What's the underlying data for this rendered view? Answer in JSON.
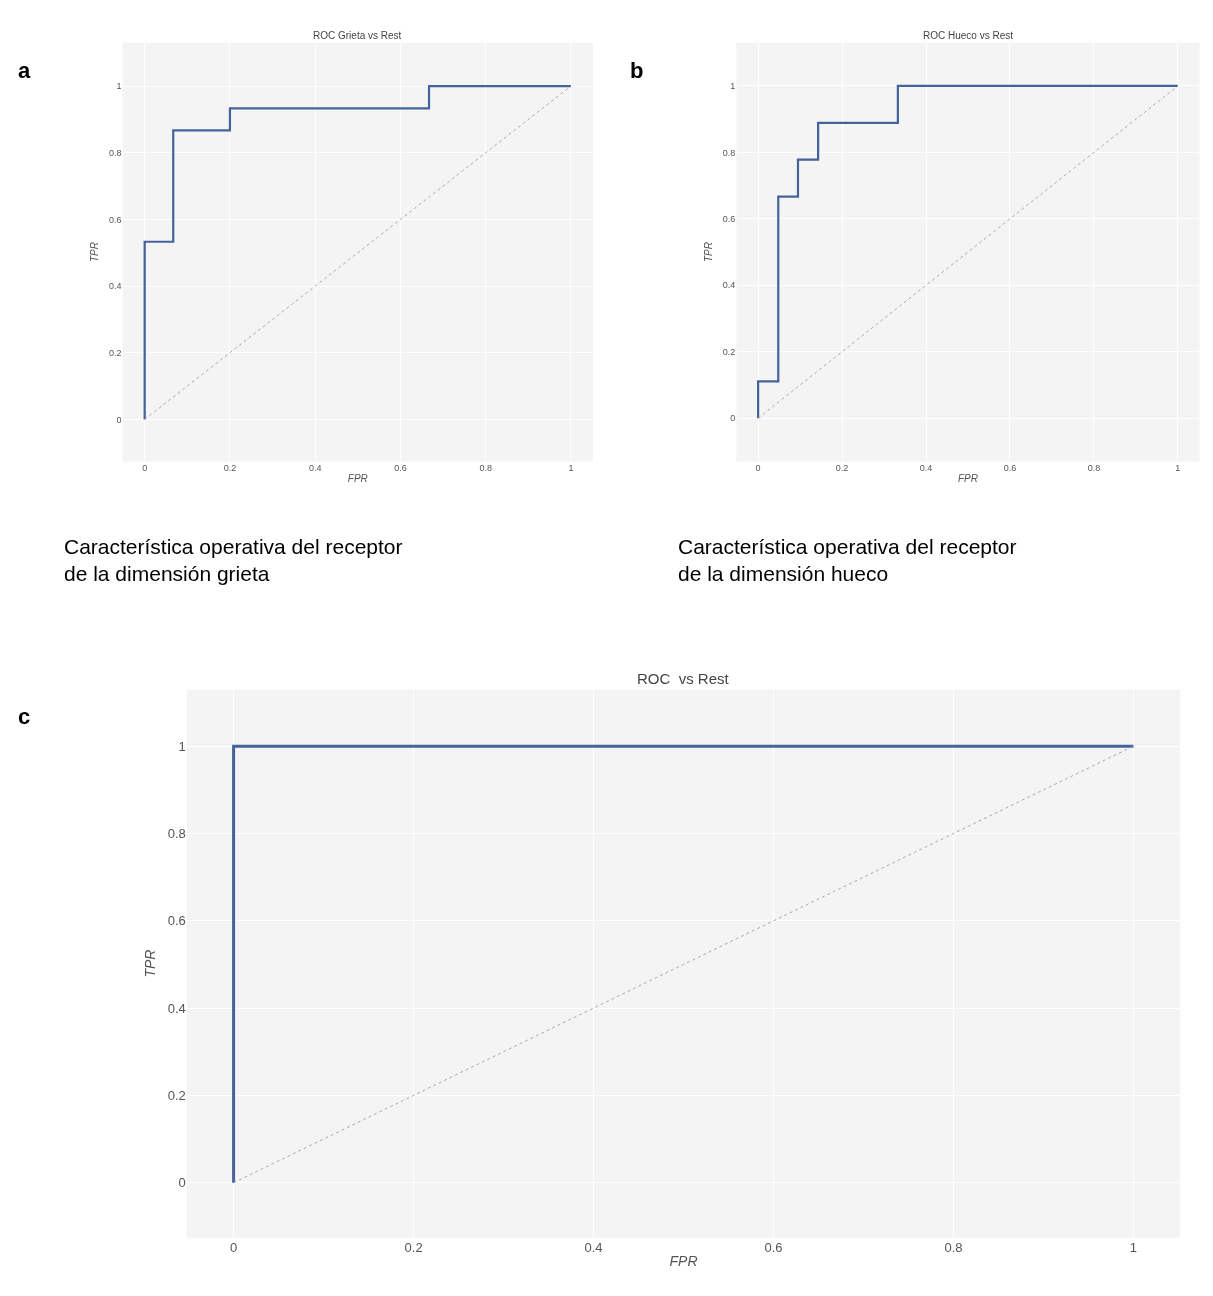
{
  "chart_data": [
    {
      "type": "step",
      "title": "ROC Grieta vs Rest",
      "xlabel": "FPR",
      "ylabel": "TPR",
      "annotations": [
        "a",
        "Característica operativa del receptor de la dimensión grieta"
      ],
      "xlim": [
        -0.052,
        1.052
      ],
      "ylim": [
        -0.126,
        1.13
      ],
      "xticks": [
        0,
        0.2,
        0.4,
        0.6,
        0.8,
        1
      ],
      "yticks": [
        0,
        0.2,
        0.4,
        0.6,
        0.8,
        1
      ],
      "grid": true,
      "series": [
        {
          "color": "#45629a",
          "x": [
            0,
            0,
            0.067,
            0.2,
            0.667,
            1
          ],
          "values": [
            0,
            0.533,
            0.867,
            0.933,
            1,
            1
          ]
        },
        {
          "type": "line",
          "line_style": "dotted",
          "color": "#aaaaaa",
          "x": [
            0,
            1
          ],
          "values": [
            0,
            1
          ]
        }
      ]
    },
    {
      "type": "step",
      "title": "ROC Hueco vs Rest",
      "xlabel": "FPR",
      "ylabel": "TPR",
      "annotations": [
        "b",
        "Característica operativa del receptor de la dimensión hueco"
      ],
      "xlim": [
        -0.052,
        1.052
      ],
      "ylim": [
        -0.13,
        1.13
      ],
      "xticks": [
        0,
        0.2,
        0.4,
        0.6,
        0.8,
        1
      ],
      "yticks": [
        0,
        0.2,
        0.4,
        0.6,
        0.8,
        1
      ],
      "grid": true,
      "series": [
        {
          "color": "#45629a",
          "x": [
            0,
            0,
            0.048,
            0.095,
            0.143,
            0.333,
            1
          ],
          "values": [
            0,
            0.111,
            0.667,
            0.778,
            0.889,
            1,
            1
          ]
        },
        {
          "type": "line",
          "line_style": "dotted",
          "color": "#aaaaaa",
          "x": [
            0,
            1
          ],
          "values": [
            0,
            1
          ]
        }
      ]
    },
    {
      "type": "step",
      "title": "ROC  vs Rest",
      "xlabel": "FPR",
      "ylabel": "TPR",
      "annotations": [
        "c"
      ],
      "xlim": [
        -0.052,
        1.052
      ],
      "ylim": [
        -0.126,
        1.13
      ],
      "xticks": [
        0,
        0.2,
        0.4,
        0.6,
        0.8,
        1
      ],
      "yticks": [
        0,
        0.2,
        0.4,
        0.6,
        0.8,
        1
      ],
      "grid": true,
      "series": [
        {
          "color": "#45629a",
          "x": [
            0,
            0,
            1
          ],
          "values": [
            0,
            1,
            1
          ]
        },
        {
          "type": "line",
          "line_style": "dotted",
          "color": "#aaaaaa",
          "x": [
            0,
            1
          ],
          "values": [
            0,
            1
          ]
        }
      ]
    }
  ]
}
